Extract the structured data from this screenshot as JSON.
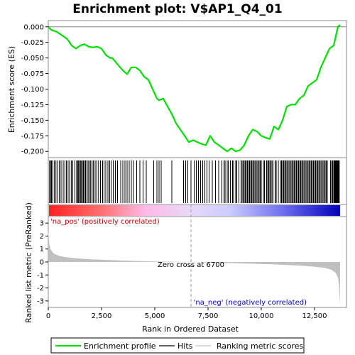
{
  "chart_data": {
    "title": "Enrichment plot: V$AP1_Q4_01",
    "x_axis": {
      "label": "Rank in Ordered Dataset",
      "range": [
        0,
        14000
      ],
      "ticks": [
        0,
        2500,
        5000,
        7500,
        10000,
        12500
      ],
      "tick_labels": [
        "0",
        "2,500",
        "5,000",
        "7,500",
        "10,000",
        "12,500"
      ]
    },
    "es_panel": {
      "type": "line",
      "ylabel": "Enrichment score (ES)",
      "ylim": [
        -0.21,
        0.01
      ],
      "ticks": [
        0.0,
        -0.025,
        -0.05,
        -0.075,
        -0.1,
        -0.125,
        -0.15,
        -0.175,
        -0.2
      ],
      "tick_labels": [
        "0.000",
        "-0.025",
        "-0.050",
        "-0.075",
        "-0.100",
        "-0.125",
        "-0.150",
        "-0.175",
        "-0.200"
      ],
      "series": [
        {
          "name": "Enrichment profile",
          "color": "#00dd00",
          "x": [
            0,
            150,
            400,
            700,
            900,
            1100,
            1300,
            1500,
            1700,
            1900,
            2100,
            2300,
            2500,
            2700,
            2900,
            3000,
            3200,
            3500,
            3700,
            3900,
            4100,
            4300,
            4500,
            4700,
            4900,
            5100,
            5200,
            5400,
            5600,
            5800,
            6000,
            6200,
            6400,
            6600,
            6800,
            7000,
            7200,
            7400,
            7600,
            7800,
            8000,
            8200,
            8400,
            8600,
            8800,
            9000,
            9200,
            9400,
            9600,
            9800,
            10000,
            10200,
            10400,
            10600,
            10800,
            11000,
            11200,
            11400,
            11600,
            11800,
            12000,
            12200,
            12400,
            12600,
            12800,
            13000,
            13200,
            13400,
            13500,
            13600,
            13700
          ],
          "y": [
            0.0,
            -0.005,
            -0.008,
            -0.015,
            -0.02,
            -0.03,
            -0.035,
            -0.03,
            -0.028,
            -0.032,
            -0.033,
            -0.032,
            -0.035,
            -0.045,
            -0.05,
            -0.05,
            -0.058,
            -0.07,
            -0.076,
            -0.065,
            -0.065,
            -0.07,
            -0.08,
            -0.085,
            -0.1,
            -0.115,
            -0.118,
            -0.115,
            -0.128,
            -0.14,
            -0.155,
            -0.165,
            -0.175,
            -0.185,
            -0.182,
            -0.185,
            -0.188,
            -0.19,
            -0.175,
            -0.185,
            -0.19,
            -0.195,
            -0.2,
            -0.195,
            -0.2,
            -0.198,
            -0.19,
            -0.175,
            -0.165,
            -0.168,
            -0.175,
            -0.178,
            -0.18,
            -0.16,
            -0.165,
            -0.15,
            -0.128,
            -0.125,
            -0.125,
            -0.115,
            -0.11,
            -0.095,
            -0.09,
            -0.085,
            -0.065,
            -0.05,
            -0.035,
            -0.03,
            -0.015,
            0.0,
            0.003
          ]
        }
      ]
    },
    "hits_panel": {
      "type": "rug",
      "legend_name": "Hits",
      "positions": [
        60,
        110,
        150,
        210,
        280,
        360,
        450,
        520,
        600,
        700,
        780,
        850,
        930,
        1000,
        1080,
        1150,
        1250,
        1330,
        1380,
        1420,
        1470,
        1510,
        1560,
        1600,
        1650,
        1700,
        1750,
        1810,
        1870,
        1930,
        1990,
        2060,
        2120,
        2200,
        2280,
        2360,
        2450,
        2550,
        2620,
        2700,
        2800,
        2880,
        2950,
        3050,
        3150,
        3250,
        3400,
        3500,
        3600,
        3700,
        3800,
        3900,
        4000,
        4150,
        4300,
        4450,
        4600,
        4950,
        5100,
        5200,
        5300,
        5800,
        6350,
        6450,
        6550,
        6700,
        6850,
        6950,
        7050,
        7150,
        7250,
        7350,
        7450,
        7550,
        7700,
        7850,
        8000,
        8150,
        8250,
        8300,
        8400,
        8450,
        8550,
        8650,
        8700,
        8800,
        8850,
        8950,
        9050,
        9100,
        9150,
        9200,
        9250,
        9300,
        9350,
        9400,
        9450,
        9500,
        9550,
        9600,
        9650,
        9700,
        9750,
        9800,
        9850,
        9900,
        9950,
        10000,
        10100,
        10150,
        10250,
        10300,
        10350,
        10400,
        10450,
        10500,
        10550,
        10650,
        10700,
        10800,
        10900,
        10950,
        11000,
        11050,
        11100,
        11150,
        11200,
        11250,
        11300,
        11350,
        11400,
        11450,
        11500,
        11550,
        11600,
        11650,
        11700,
        11750,
        11800,
        11850,
        11900,
        11950,
        12000,
        12050,
        12100,
        12150,
        12200,
        12250,
        12300,
        12350,
        12400,
        12450,
        12500,
        12550,
        12600,
        12650,
        12700,
        12750,
        12800,
        12850,
        12900,
        12950,
        13000,
        13050,
        13100,
        13250,
        13300,
        13350,
        13400,
        13420,
        13440,
        13460,
        13480,
        13500,
        13520,
        13540,
        13560,
        13580,
        13600,
        13620,
        13640,
        13660
      ]
    },
    "metric_panel": {
      "type": "area",
      "legend_name": "Ranking metric scores",
      "ylabel": "Ranked list metric (PreRanked)",
      "ylim": [
        -3.5,
        3.5
      ],
      "ticks": [
        3,
        2,
        1,
        0,
        -1,
        -2,
        -3
      ],
      "tick_labels": [
        "3",
        "2",
        "1",
        "0",
        "-1",
        "-2",
        "-3"
      ],
      "x": [
        0,
        20,
        50,
        100,
        200,
        300,
        500,
        800,
        1200,
        2000,
        3000,
        4000,
        5000,
        6000,
        6700,
        7500,
        8500,
        9500,
        10500,
        11500,
        12000,
        12500,
        13000,
        13300,
        13500,
        13600,
        13650,
        13700
      ],
      "y": [
        2.7,
        2.0,
        1.4,
        1.0,
        0.75,
        0.62,
        0.48,
        0.38,
        0.3,
        0.21,
        0.14,
        0.08,
        0.04,
        0.01,
        0.0,
        -0.04,
        -0.08,
        -0.13,
        -0.18,
        -0.25,
        -0.3,
        -0.36,
        -0.46,
        -0.6,
        -0.85,
        -1.2,
        -1.8,
        -3.3
      ],
      "zero_cross_label": "Zero cross at 6700",
      "zero_cross_rank": 6700,
      "pos_label": "'na_pos' (positively correlated)",
      "neg_label": "'na_neg' (negatively correlated)"
    },
    "colors": {
      "pos_label": "#cc0000",
      "neg_label": "#0000cc",
      "metric_fill": "#c0c0c0",
      "zero_cross": "#999999"
    },
    "legend": [
      {
        "label": "Enrichment profile",
        "color": "#00dd00"
      },
      {
        "label": "Hits",
        "color": "#000000"
      },
      {
        "label": "Ranking metric scores",
        "color": "#c0c0c0"
      }
    ]
  }
}
